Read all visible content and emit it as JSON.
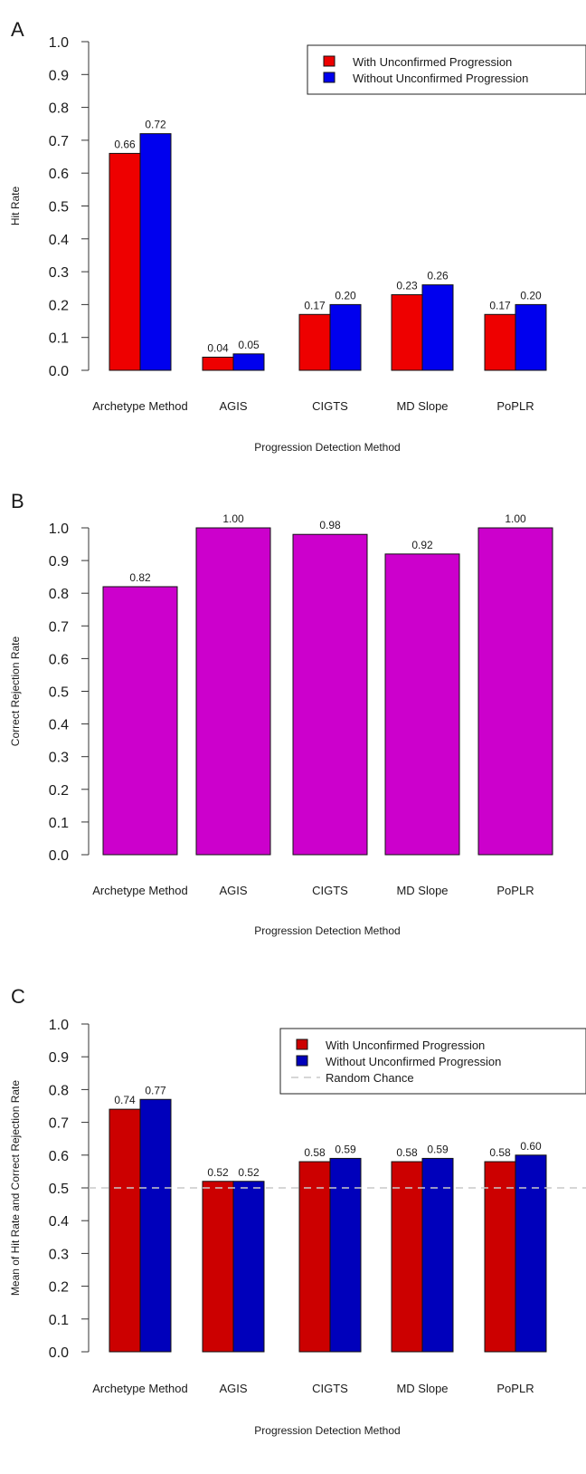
{
  "chart_data": [
    {
      "panel": "A",
      "type": "bar",
      "categories": [
        "Archetype Method",
        "AGIS",
        "CIGTS",
        "MD Slope",
        "PoPLR"
      ],
      "series": [
        {
          "name": "With Unconfirmed Progression",
          "color": "#ee0000",
          "values": [
            0.66,
            0.04,
            0.17,
            0.23,
            0.17
          ],
          "labels": [
            "0.66",
            "0.04",
            "0.17",
            "0.23",
            "0.17"
          ]
        },
        {
          "name": "Without Unconfirmed Progression",
          "color": "#0000ee",
          "values": [
            0.72,
            0.05,
            0.2,
            0.26,
            0.2
          ],
          "labels": [
            "0.72",
            "0.05",
            "0.20",
            "0.26",
            "0.20"
          ]
        }
      ],
      "xlabel": "Progression Detection Method",
      "ylabel": "Hit Rate",
      "ylim": [
        0,
        1
      ],
      "yticks": [
        "0.0",
        "0.1",
        "0.2",
        "0.3",
        "0.4",
        "0.5",
        "0.6",
        "0.7",
        "0.8",
        "0.9",
        "1.0"
      ],
      "legend": "top-right",
      "grid": false
    },
    {
      "panel": "B",
      "type": "bar",
      "categories": [
        "Archetype Method",
        "AGIS",
        "CIGTS",
        "MD Slope",
        "PoPLR"
      ],
      "series": [
        {
          "color": "#cc00cc",
          "values": [
            0.82,
            1.0,
            0.98,
            0.92,
            1.0
          ],
          "labels": [
            "0.82",
            "1.00",
            "0.98",
            "0.92",
            "1.00"
          ]
        }
      ],
      "xlabel": "Progression Detection Method",
      "ylabel": "Correct Rejection Rate",
      "ylim": [
        0,
        1
      ],
      "yticks": [
        "0.0",
        "0.1",
        "0.2",
        "0.3",
        "0.4",
        "0.5",
        "0.6",
        "0.7",
        "0.8",
        "0.9",
        "1.0"
      ],
      "grid": false
    },
    {
      "panel": "C",
      "type": "bar",
      "categories": [
        "Archetype Method",
        "AGIS",
        "CIGTS",
        "MD Slope",
        "PoPLR"
      ],
      "series": [
        {
          "name": "With Unconfirmed Progression",
          "color": "#cc0000",
          "values": [
            0.74,
            0.52,
            0.58,
            0.58,
            0.58
          ],
          "labels": [
            "0.74",
            "0.52",
            "0.58",
            "0.58",
            "0.58"
          ]
        },
        {
          "name": "Without Unconfirmed Progression",
          "color": "#0000bb",
          "values": [
            0.77,
            0.52,
            0.59,
            0.59,
            0.6
          ],
          "labels": [
            "0.77",
            "0.52",
            "0.59",
            "0.59",
            "0.60"
          ]
        }
      ],
      "reference_line": {
        "name": "Random Chance",
        "value": 0.5,
        "color": "#c8c8c8"
      },
      "xlabel": "Progression Detection Method",
      "ylabel": "Mean of Hit Rate and Correct Rejection Rate",
      "ylim": [
        0,
        1
      ],
      "yticks": [
        "0.0",
        "0.1",
        "0.2",
        "0.3",
        "0.4",
        "0.5",
        "0.6",
        "0.7",
        "0.8",
        "0.9",
        "1.0"
      ],
      "legend": "top-right",
      "grid": false
    }
  ]
}
